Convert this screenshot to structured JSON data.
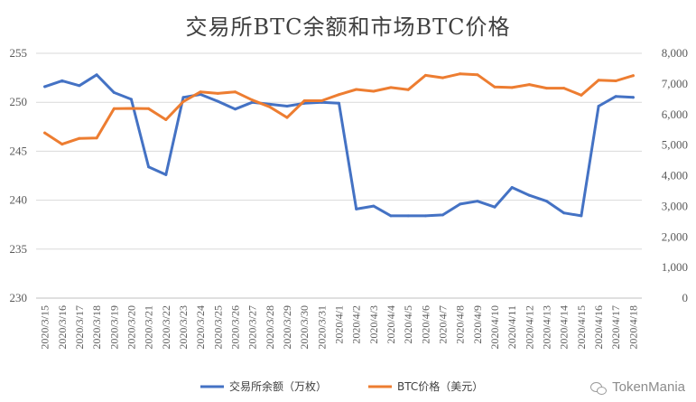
{
  "chart_data": {
    "type": "line",
    "title": "交易所BTC余额和市场BTC价格",
    "categories": [
      "2020/3/15",
      "2020/3/16",
      "2020/3/17",
      "2020/3/18",
      "2020/3/19",
      "2020/3/20",
      "2020/3/21",
      "2020/3/22",
      "2020/3/23",
      "2020/3/24",
      "2020/3/25",
      "2020/3/26",
      "2020/3/27",
      "2020/3/28",
      "2020/3/29",
      "2020/3/30",
      "2020/3/31",
      "2020/4/1",
      "2020/4/2",
      "2020/4/3",
      "2020/4/4",
      "2020/4/5",
      "2020/4/6",
      "2020/4/7",
      "2020/4/8",
      "2020/4/9",
      "2020/4/10",
      "2020/4/11",
      "2020/4/12",
      "2020/4/13",
      "2020/4/14",
      "2020/4/15",
      "2020/4/16",
      "2020/4/17",
      "2020/4/18"
    ],
    "left_axis": {
      "min": 230,
      "max": 255,
      "ticks": [
        "230",
        "235",
        "240",
        "245",
        "250",
        "255"
      ]
    },
    "right_axis": {
      "min": 0,
      "max": 8000,
      "ticks": [
        "0",
        "1,000",
        "2,000",
        "3,000",
        "4,000",
        "5,000",
        "6,000",
        "7,000",
        "8,000"
      ]
    },
    "grid": true,
    "legend_position": "bottom",
    "series": [
      {
        "name": "交易所余额（万枚）",
        "axis": "left",
        "color": "#4472C4",
        "values": [
          251.6,
          252.2,
          251.7,
          252.8,
          251.0,
          250.3,
          243.4,
          242.6,
          250.5,
          250.8,
          250.1,
          249.3,
          250.0,
          249.8,
          249.6,
          249.9,
          250.0,
          249.9,
          239.1,
          239.4,
          238.4,
          238.4,
          238.4,
          238.5,
          239.6,
          239.9,
          239.3,
          241.3,
          240.5,
          239.9,
          238.7,
          238.4,
          249.6,
          250.6,
          250.5
        ]
      },
      {
        "name": "BTC价格（美元）",
        "axis": "right",
        "color": "#ED7D31",
        "values": [
          5400,
          5030,
          5220,
          5230,
          6190,
          6200,
          6190,
          5830,
          6420,
          6740,
          6690,
          6740,
          6470,
          6250,
          5900,
          6450,
          6450,
          6650,
          6820,
          6760,
          6880,
          6810,
          7280,
          7200,
          7330,
          7300,
          6900,
          6880,
          6980,
          6860,
          6860,
          6630,
          7120,
          7100,
          7270
        ]
      }
    ]
  },
  "watermark": {
    "text": "TokenMania"
  }
}
